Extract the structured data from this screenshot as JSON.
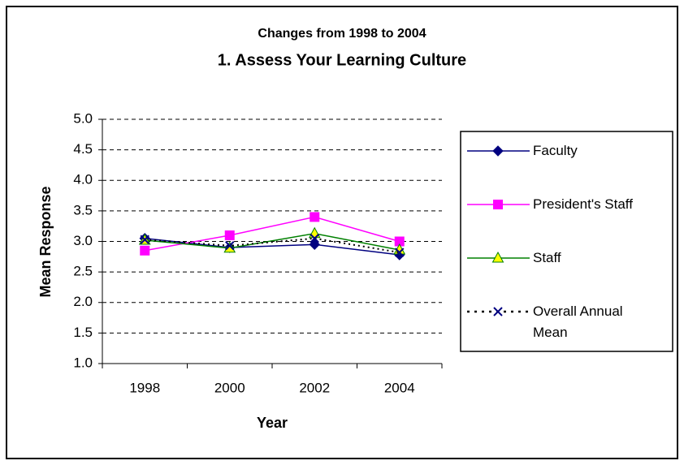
{
  "chart_data": {
    "type": "line",
    "title": "Changes from 1998 to 2004",
    "subtitle": "1.  Assess Your Learning Culture",
    "x_label": "Year",
    "y_label": "Mean Response",
    "categories": [
      "1998",
      "2000",
      "2002",
      "2004"
    ],
    "series": [
      {
        "name": "Faculty",
        "color": "#000080",
        "marker": "diamond",
        "marker_fill": "#000080",
        "dash": false,
        "values": [
          3.05,
          2.9,
          2.95,
          2.78
        ]
      },
      {
        "name": "President's Staff",
        "color": "#ff00ff",
        "marker": "square",
        "marker_fill": "#ff00ff",
        "dash": false,
        "values": [
          2.85,
          3.1,
          3.4,
          3.0
        ]
      },
      {
        "name": "Staff",
        "color": "#008000",
        "marker": "triangle",
        "marker_fill": "#ffff00",
        "dash": false,
        "values": [
          3.02,
          2.89,
          3.13,
          2.86
        ]
      },
      {
        "name": "Overall Annual Mean",
        "color": "#000000",
        "marker": "x",
        "marker_fill": "#000080",
        "dash": true,
        "values": [
          3.03,
          2.93,
          3.05,
          2.82
        ]
      }
    ],
    "ylim": [
      1,
      5
    ],
    "yticks": [
      {
        "value": 1,
        "label": "1.0"
      },
      {
        "value": 1.5,
        "label": "1.5"
      },
      {
        "value": 2,
        "label": "2.0"
      },
      {
        "value": 2.5,
        "label": "2.5"
      },
      {
        "value": 3,
        "label": "3.0"
      },
      {
        "value": 3.5,
        "label": "3.5"
      },
      {
        "value": 4,
        "label": "4.0"
      },
      {
        "value": 4.5,
        "label": "4.5"
      },
      {
        "value": 5,
        "label": "5.0"
      }
    ],
    "grid": true,
    "legend": "right"
  }
}
